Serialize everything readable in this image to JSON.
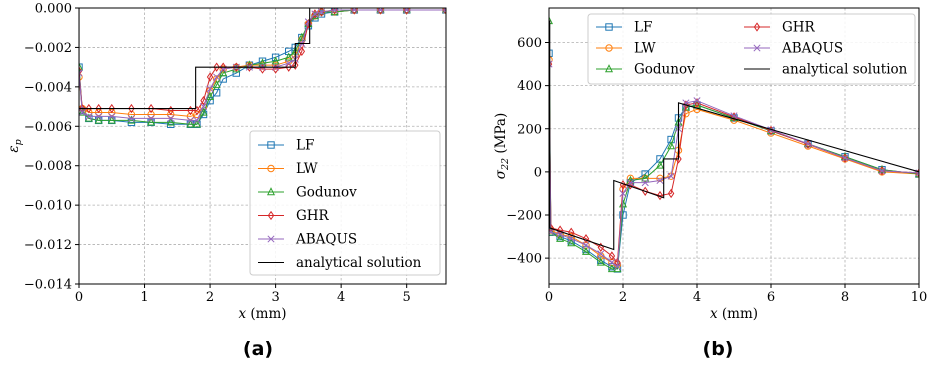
{
  "captions": [
    "(a)",
    "(b)"
  ],
  "colors": {
    "LF": "#1f77b4",
    "LW": "#ff7f0e",
    "Godunov": "#2ca02c",
    "GHR": "#d62728",
    "ABAQUS": "#9467bd",
    "analytical solution": "#000000"
  },
  "chart_data": [
    {
      "type": "line",
      "panel": "(a)",
      "xlabel": "x (mm)",
      "ylabel": "ε_p",
      "xlim": [
        0,
        5.6
      ],
      "ylim": [
        -0.014,
        0.0
      ],
      "xticks": [
        0,
        1,
        2,
        3,
        4,
        5
      ],
      "xtick_labels": [
        "0",
        "1",
        "2",
        "3",
        "4",
        "5"
      ],
      "yticks": [
        0.0,
        -0.002,
        -0.004,
        -0.006,
        -0.008,
        -0.01,
        -0.012,
        -0.014
      ],
      "ytick_labels": [
        "0.000",
        "−0.002",
        "−0.004",
        "−0.006",
        "−0.008",
        "−0.010",
        "−0.012",
        "−0.014"
      ],
      "grid": true,
      "legend_position": "lower-right",
      "series": [
        {
          "name": "LF",
          "marker": "square",
          "x": [
            0,
            0.05,
            0.15,
            0.3,
            0.5,
            0.8,
            1.1,
            1.4,
            1.7,
            1.8,
            1.9,
            2.0,
            2.1,
            2.2,
            2.4,
            2.6,
            2.8,
            3.0,
            3.2,
            3.3,
            3.4,
            3.5,
            3.6,
            3.7,
            3.9,
            4.2,
            4.6,
            5.0,
            5.6
          ],
          "y": [
            -0.003,
            -0.0052,
            -0.0056,
            -0.0057,
            -0.0057,
            -0.0058,
            -0.0058,
            -0.0059,
            -0.0059,
            -0.0059,
            -0.0054,
            -0.0047,
            -0.0043,
            -0.0036,
            -0.0033,
            -0.0029,
            -0.0027,
            -0.0025,
            -0.0022,
            -0.002,
            -0.0015,
            -0.0009,
            -0.0005,
            -0.0003,
            -0.0002,
            -0.0001,
            -0.0001,
            -0.0001,
            -0.0001
          ]
        },
        {
          "name": "LW",
          "marker": "circle",
          "x": [
            0,
            0.05,
            0.15,
            0.3,
            0.5,
            0.8,
            1.1,
            1.4,
            1.7,
            1.8,
            1.9,
            2.0,
            2.1,
            2.2,
            2.4,
            2.6,
            2.8,
            3.0,
            3.2,
            3.3,
            3.4,
            3.5,
            3.6,
            3.7,
            3.9,
            4.2,
            4.6,
            5.0,
            5.6
          ],
          "y": [
            -0.0035,
            -0.0051,
            -0.0053,
            -0.0053,
            -0.0053,
            -0.0054,
            -0.0054,
            -0.0054,
            -0.0055,
            -0.0054,
            -0.005,
            -0.0042,
            -0.0036,
            -0.0031,
            -0.003,
            -0.0029,
            -0.0029,
            -0.0029,
            -0.0027,
            -0.0024,
            -0.0016,
            -0.0008,
            -0.0004,
            -0.0002,
            -0.0002,
            -0.0001,
            -0.0001,
            -0.0001,
            -0.0001
          ]
        },
        {
          "name": "Godunov",
          "marker": "triangle",
          "x": [
            0,
            0.05,
            0.15,
            0.3,
            0.5,
            0.8,
            1.1,
            1.4,
            1.7,
            1.8,
            1.9,
            2.0,
            2.1,
            2.2,
            2.4,
            2.6,
            2.8,
            3.0,
            3.2,
            3.3,
            3.4,
            3.5,
            3.6,
            3.7,
            3.9,
            4.2,
            4.6,
            5.0,
            5.6
          ],
          "y": [
            -0.003,
            -0.0053,
            -0.0056,
            -0.0057,
            -0.0057,
            -0.0057,
            -0.0058,
            -0.0058,
            -0.0059,
            -0.0059,
            -0.0053,
            -0.0045,
            -0.0039,
            -0.0033,
            -0.0031,
            -0.0029,
            -0.0028,
            -0.0027,
            -0.0025,
            -0.0022,
            -0.0015,
            -0.0008,
            -0.0004,
            -0.0002,
            -0.0002,
            -0.0001,
            -0.0001,
            -0.0001,
            -0.0001
          ]
        },
        {
          "name": "GHR",
          "marker": "diamond",
          "x": [
            0,
            0.05,
            0.15,
            0.3,
            0.5,
            0.8,
            1.1,
            1.4,
            1.7,
            1.8,
            1.9,
            2.0,
            2.1,
            2.2,
            2.4,
            2.6,
            2.8,
            3.0,
            3.2,
            3.3,
            3.4,
            3.5,
            3.6,
            3.7,
            3.9,
            4.2,
            4.6,
            5.0,
            5.6
          ],
          "y": [
            -0.0032,
            -0.0051,
            -0.0051,
            -0.0051,
            -0.0051,
            -0.0051,
            -0.0051,
            -0.0052,
            -0.0052,
            -0.0052,
            -0.0047,
            -0.0035,
            -0.003,
            -0.003,
            -0.003,
            -0.003,
            -0.0031,
            -0.0031,
            -0.003,
            -0.0029,
            -0.0022,
            -0.0008,
            -0.0003,
            -0.0002,
            -0.0001,
            -0.0001,
            -0.0001,
            -0.0001,
            -0.0001
          ]
        },
        {
          "name": "ABAQUS",
          "marker": "x",
          "x": [
            0,
            0.05,
            0.15,
            0.3,
            0.5,
            0.8,
            1.1,
            1.4,
            1.7,
            1.8,
            1.9,
            2.0,
            2.1,
            2.2,
            2.4,
            2.6,
            2.8,
            3.0,
            3.2,
            3.3,
            3.4,
            3.5,
            3.6,
            3.7,
            3.9,
            4.2,
            4.6,
            5.0,
            5.6
          ],
          "y": [
            -0.0033,
            -0.0053,
            -0.0055,
            -0.0055,
            -0.0055,
            -0.0056,
            -0.0056,
            -0.0056,
            -0.0057,
            -0.0057,
            -0.005,
            -0.0041,
            -0.0035,
            -0.0031,
            -0.003,
            -0.003,
            -0.003,
            -0.003,
            -0.0028,
            -0.0026,
            -0.0018,
            -0.0007,
            -0.0003,
            -0.0002,
            -0.0001,
            -0.0001,
            -0.0001,
            -0.0001,
            -0.0001
          ]
        },
        {
          "name": "analytical solution",
          "marker": "none",
          "x": [
            0,
            0,
            1.78,
            1.78,
            3.3,
            3.3,
            3.52,
            3.52,
            5.6
          ],
          "y": [
            0.0,
            -0.0051,
            -0.0051,
            -0.003,
            -0.003,
            -0.0018,
            -0.0018,
            0.0,
            0.0
          ]
        }
      ]
    },
    {
      "type": "line",
      "panel": "(b)",
      "xlabel": "x (mm)",
      "ylabel": "σ_22 (MPa)",
      "xlim": [
        0,
        10
      ],
      "ylim": [
        -520,
        760
      ],
      "xticks": [
        0,
        2,
        4,
        6,
        8,
        10
      ],
      "xtick_labels": [
        "0",
        "2",
        "4",
        "6",
        "8",
        "10"
      ],
      "yticks": [
        -400,
        -200,
        0,
        200,
        400,
        600
      ],
      "ytick_labels": [
        "−400",
        "−200",
        "0",
        "200",
        "400",
        "600"
      ],
      "grid": true,
      "legend_position": "upper-left",
      "series": [
        {
          "name": "LF",
          "marker": "square",
          "x": [
            0,
            0.05,
            0.3,
            0.6,
            1.0,
            1.4,
            1.7,
            1.85,
            2.0,
            2.2,
            2.6,
            3.0,
            3.3,
            3.5,
            3.7,
            4.0,
            5,
            6,
            7,
            8,
            9,
            10
          ],
          "y": [
            550,
            -280,
            -300,
            -320,
            -360,
            -410,
            -440,
            -450,
            -200,
            -50,
            -10,
            60,
            150,
            250,
            300,
            310,
            250,
            190,
            130,
            70,
            10,
            -10
          ]
        },
        {
          "name": "LW",
          "marker": "circle",
          "x": [
            0,
            0.05,
            0.3,
            0.6,
            1.0,
            1.4,
            1.7,
            1.85,
            2.0,
            2.2,
            2.6,
            3.0,
            3.3,
            3.5,
            3.7,
            4.0,
            5,
            6,
            7,
            8,
            9,
            10
          ],
          "y": [
            520,
            -270,
            -290,
            -300,
            -340,
            -390,
            -420,
            -430,
            -80,
            -30,
            -30,
            -30,
            -20,
            100,
            270,
            290,
            240,
            180,
            120,
            60,
            0,
            -10
          ]
        },
        {
          "name": "Godunov",
          "marker": "triangle",
          "x": [
            0,
            0.05,
            0.3,
            0.6,
            1.0,
            1.4,
            1.7,
            1.85,
            2.0,
            2.2,
            2.6,
            3.0,
            3.3,
            3.5,
            3.7,
            4.0,
            5,
            6,
            7,
            8,
            9,
            10
          ],
          "y": [
            700,
            -280,
            -310,
            -330,
            -370,
            -420,
            -450,
            -450,
            -150,
            -40,
            -30,
            30,
            120,
            230,
            300,
            310,
            250,
            190,
            130,
            70,
            10,
            -10
          ]
        },
        {
          "name": "GHR",
          "marker": "diamond",
          "x": [
            0,
            0.05,
            0.3,
            0.6,
            1.0,
            1.4,
            1.7,
            1.85,
            2.0,
            2.2,
            2.6,
            3.0,
            3.3,
            3.5,
            3.7,
            4.0,
            5,
            6,
            7,
            8,
            9,
            10
          ],
          "y": [
            500,
            -260,
            -270,
            -280,
            -310,
            -350,
            -390,
            -420,
            -60,
            -60,
            -90,
            -110,
            -100,
            60,
            310,
            320,
            255,
            192,
            128,
            64,
            5,
            -5
          ]
        },
        {
          "name": "ABAQUS",
          "marker": "x",
          "x": [
            0,
            0.05,
            0.3,
            0.6,
            1.0,
            1.4,
            1.7,
            1.85,
            2.0,
            2.2,
            2.6,
            3.0,
            3.3,
            3.5,
            3.7,
            4.0,
            5,
            6,
            7,
            8,
            9,
            10
          ],
          "y": [
            500,
            -280,
            -290,
            -310,
            -340,
            -380,
            -420,
            -440,
            -100,
            -50,
            -50,
            -40,
            -20,
            200,
            320,
            330,
            260,
            195,
            130,
            65,
            5,
            -5
          ]
        },
        {
          "name": "analytical solution",
          "marker": "none",
          "x": [
            0,
            0.02,
            0.02,
            1.75,
            1.75,
            3.1,
            3.1,
            3.5,
            3.5,
            10
          ],
          "y": [
            700,
            700,
            -260,
            -360,
            -40,
            -120,
            60,
            60,
            320,
            0
          ]
        }
      ]
    }
  ]
}
